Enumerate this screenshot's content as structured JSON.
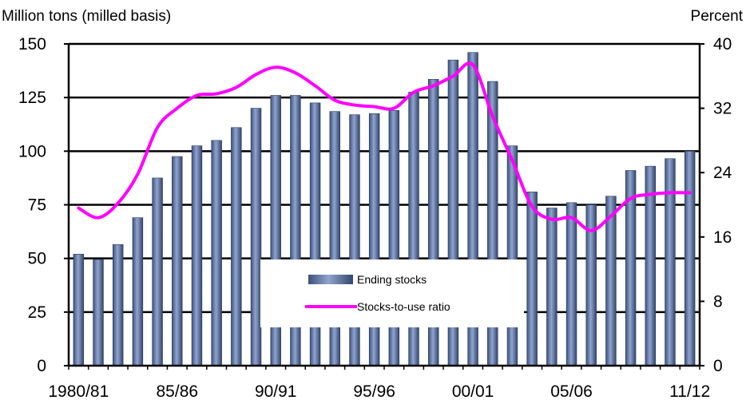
{
  "chart_data": {
    "type": "bar",
    "left_axis_label": "Million tons (milled basis)",
    "right_axis_label": "Percent",
    "left_ylim": [
      0,
      150
    ],
    "left_ticks": [
      "0",
      "25",
      "50",
      "75",
      "100",
      "125",
      "150"
    ],
    "right_ylim": [
      0,
      40
    ],
    "right_ticks": [
      "0",
      "8",
      "16",
      "24",
      "32",
      "40"
    ],
    "x_tick_labels": [
      {
        "index": 0,
        "label": "1980/81"
      },
      {
        "index": 5,
        "label": "85/86"
      },
      {
        "index": 10,
        "label": "90/91"
      },
      {
        "index": 15,
        "label": "95/96"
      },
      {
        "index": 20,
        "label": "00/01"
      },
      {
        "index": 25,
        "label": "05/06"
      },
      {
        "index": 31,
        "label": "11/12"
      }
    ],
    "grid": "horizontal",
    "legend_placement": "center-bottom",
    "series": [
      {
        "name": "Ending stocks",
        "kind": "bar",
        "color": "#6f86b4",
        "values": [
          52,
          49.5,
          56.5,
          69,
          87.5,
          97.5,
          102.5,
          105,
          111,
          120,
          126,
          126,
          122.5,
          118.5,
          117,
          117.5,
          119,
          127.5,
          133.5,
          142.5,
          146,
          132.5,
          102.5,
          81,
          73.5,
          76,
          75,
          79,
          91,
          93,
          96.5,
          100
        ]
      },
      {
        "name": "Stocks-to-use ratio",
        "kind": "line",
        "color": "#ff00ff",
        "values": [
          19.6,
          18.4,
          20.2,
          23.8,
          29.6,
          32.0,
          33.6,
          33.8,
          34.6,
          36.2,
          37.1,
          36.4,
          34.8,
          33.0,
          32.4,
          32.2,
          32.0,
          34.0,
          34.8,
          36.0,
          37.4,
          31.0,
          25.5,
          19.8,
          18.2,
          18.4,
          16.8,
          18.6,
          20.8,
          21.3,
          21.5,
          21.5
        ]
      }
    ]
  }
}
